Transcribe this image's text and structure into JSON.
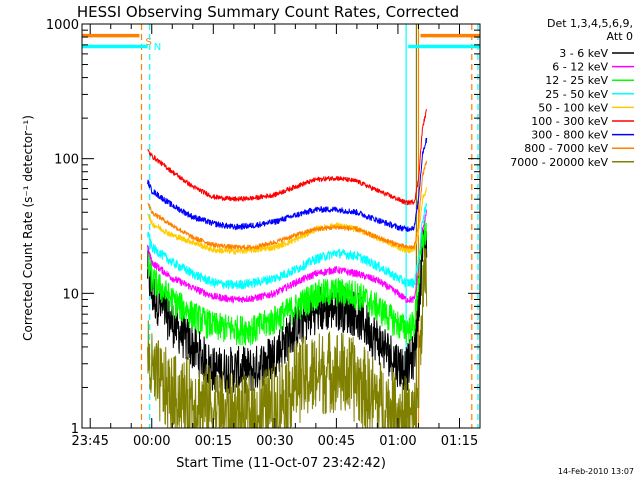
{
  "chart_data": {
    "type": "line",
    "title": "HESSI Observing Summary Count Rates, Corrected",
    "xlabel": "Start Time (11-Oct-07 23:42:42)",
    "ylabel": "Corrected Count Rate (s⁻¹ detector⁻¹)",
    "y_scale": "log",
    "ylim": [
      1,
      1000
    ],
    "xlim_minutes": [
      -17,
      80
    ],
    "x_ticks": [
      {
        "label": "23:45",
        "minutes": -15
      },
      {
        "label": "00:00",
        "minutes": 0
      },
      {
        "label": "00:15",
        "minutes": 15
      },
      {
        "label": "00:30",
        "minutes": 30
      },
      {
        "label": "00:45",
        "minutes": 45
      },
      {
        "label": "01:00",
        "minutes": 60
      },
      {
        "label": "01:15",
        "minutes": 75
      }
    ],
    "y_ticks": [
      {
        "label": "1",
        "value": 1
      },
      {
        "label": "10",
        "value": 10
      },
      {
        "label": "100",
        "value": 100
      },
      {
        "label": "1000",
        "value": 1000
      }
    ],
    "legend_header": [
      "Det 1,3,4,5,6,9,",
      "Att 0"
    ],
    "legend_position": "right",
    "footer_date": "14-Feb-2010 13:07",
    "x": [
      -1,
      0,
      5,
      10,
      15,
      20,
      25,
      30,
      35,
      40,
      45,
      50,
      55,
      60,
      62,
      64,
      65,
      66,
      67
    ],
    "series": [
      {
        "name": "3 - 6 keV",
        "color": "#000000",
        "noise": 0.5,
        "values": [
          15,
          10,
          6,
          4,
          2.7,
          2.7,
          2.7,
          3.5,
          5.5,
          7.5,
          8,
          7,
          4.5,
          3,
          2.7,
          3.5,
          8,
          20,
          25
        ]
      },
      {
        "name": "6 - 12 keV",
        "color": "#ff00ff",
        "noise": 0.06,
        "values": [
          22,
          17,
          13,
          11,
          9.5,
          9,
          9.2,
          10,
          12,
          14,
          15,
          14,
          12.5,
          10,
          9,
          9,
          15,
          30,
          40
        ]
      },
      {
        "name": "12 - 25 keV",
        "color": "#00ff00",
        "noise": 0.25,
        "values": [
          17,
          13,
          9,
          7,
          5.8,
          5.5,
          5.5,
          6.5,
          8,
          10,
          10.5,
          10,
          8,
          6,
          5.5,
          6,
          12,
          25,
          30
        ]
      },
      {
        "name": "25 - 50 keV",
        "color": "#00ffff",
        "noise": 0.08,
        "values": [
          28,
          22,
          17,
          14,
          12,
          11.5,
          12,
          13,
          15,
          18,
          20,
          19,
          16,
          13,
          12,
          12,
          18,
          35,
          45
        ]
      },
      {
        "name": "50 - 100 keV",
        "color": "#ffcc00",
        "noise": 0.05,
        "values": [
          40,
          33,
          27,
          24,
          21,
          20.5,
          21,
          22,
          25,
          30,
          32,
          30,
          26,
          22,
          21,
          21,
          28,
          50,
          60
        ]
      },
      {
        "name": "100 - 300 keV",
        "color": "#ff0000",
        "noise": 0.04,
        "values": [
          115,
          105,
          80,
          62,
          52,
          50,
          51,
          54,
          62,
          70,
          72,
          68,
          58,
          50,
          47,
          48,
          70,
          170,
          230
        ]
      },
      {
        "name": "300 - 800 keV",
        "color": "#0000ff",
        "noise": 0.05,
        "values": [
          68,
          58,
          45,
          37,
          33,
          31,
          32,
          34,
          38,
          42,
          42,
          40,
          35,
          31,
          30,
          31,
          50,
          110,
          140
        ]
      },
      {
        "name": "800 - 7000 keV",
        "color": "#ff8000",
        "noise": 0.04,
        "values": [
          48,
          40,
          32,
          26,
          23,
          22,
          22,
          24,
          27,
          30,
          31,
          30,
          26,
          23,
          22,
          22,
          33,
          75,
          95
        ]
      },
      {
        "name": "7000 - 20000 keV",
        "color": "#808000",
        "noise": 0.9,
        "values": [
          4,
          2.5,
          1.7,
          1.6,
          1.4,
          1.2,
          1.2,
          1.5,
          2.2,
          2.5,
          2.7,
          2.2,
          1.6,
          1.3,
          1.2,
          1.1,
          2,
          10,
          12
        ]
      }
    ],
    "markers": [
      {
        "label": "S",
        "color": "#ff8000",
        "minutes": -2.5,
        "style": "dashed"
      },
      {
        "label": "N",
        "color": "#00ffff",
        "minutes": -0.5,
        "style": "dashed"
      },
      {
        "label": "",
        "color": "#00ffff",
        "minutes": 62,
        "style": "solid"
      },
      {
        "label": "",
        "color": "#ff8000",
        "minutes": 65,
        "style": "solid"
      },
      {
        "label": "",
        "color": "#808000",
        "minutes": 64.5,
        "style": "solid"
      },
      {
        "label": "",
        "color": "#ff8000",
        "minutes": 78,
        "style": "dashed"
      },
      {
        "label": "",
        "color": "#00ffff",
        "minutes": 79.5,
        "style": "dashed"
      }
    ],
    "night_bars": [
      {
        "color": "#ff8000",
        "from_minutes": -17,
        "to_minutes": -3,
        "level": 820
      },
      {
        "color": "#00ffff",
        "from_minutes": -17,
        "to_minutes": -1,
        "level": 680
      },
      {
        "color": "#ff8000",
        "from_minutes": 65.5,
        "to_minutes": 80,
        "level": 820
      },
      {
        "color": "#00ffff",
        "from_minutes": 62.5,
        "to_minutes": 80,
        "level": 680
      }
    ]
  }
}
